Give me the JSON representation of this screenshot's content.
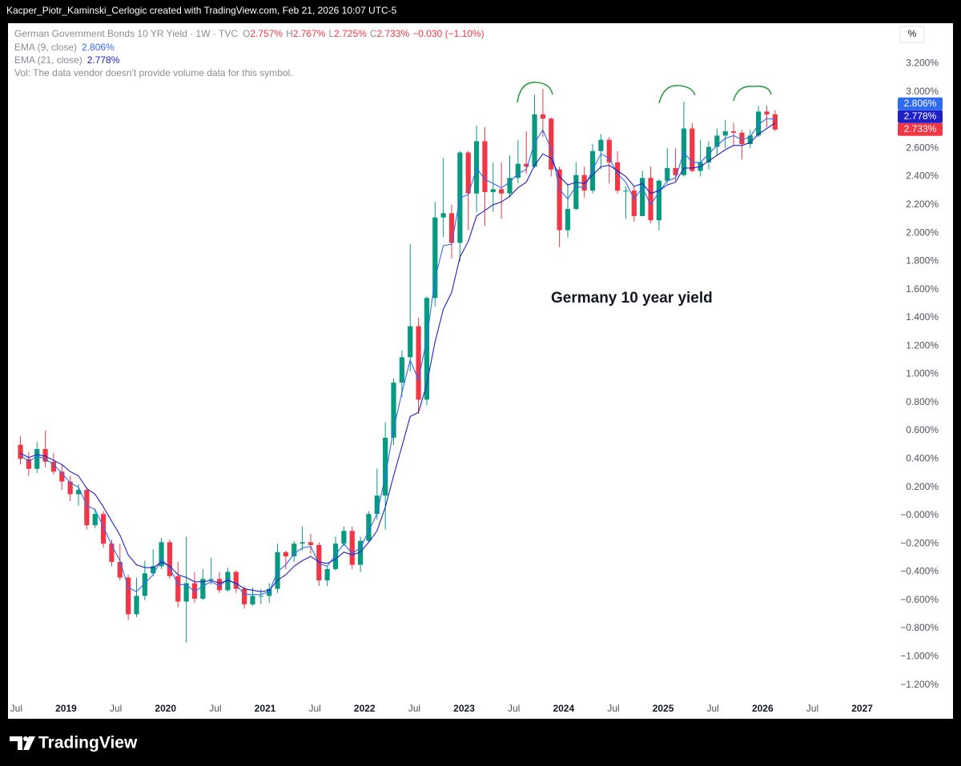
{
  "header": {
    "credit": "Kacper_Piotr_Kaminski_Cerlogic created with TradingView.com, Feb 21, 2026 10:07 UTC-5"
  },
  "footer": {
    "brand": "TradingView"
  },
  "chart_data": {
    "type": "candlestick",
    "title": "German Government Bonds 10 YR Yield · 1W · TVC",
    "legend": {
      "ohlc": [
        {
          "key": "O",
          "value": "2.757%"
        },
        {
          "key": "H",
          "value": "2.767%"
        },
        {
          "key": "L",
          "value": "2.725%"
        },
        {
          "key": "C",
          "value": "2.733%"
        }
      ],
      "change": "−0.030 (−1.10%)",
      "volume_note": "Vol: The data vendor doesn't provide volume data for this symbol."
    },
    "annotation": "Germany 10 year yield",
    "unit_label": "%",
    "up_color": "#089981",
    "down_color": "#f23645",
    "x": [
      "2018-07",
      "2018-08",
      "2018-09",
      "2018-10",
      "2018-11",
      "2018-12",
      "2019-01",
      "2019-02",
      "2019-03",
      "2019-04",
      "2019-05",
      "2019-06",
      "2019-07",
      "2019-08",
      "2019-09",
      "2019-10",
      "2019-11",
      "2019-12",
      "2020-01",
      "2020-02",
      "2020-03",
      "2020-04",
      "2020-05",
      "2020-06",
      "2020-07",
      "2020-08",
      "2020-09",
      "2020-10",
      "2020-11",
      "2020-12",
      "2021-01",
      "2021-02",
      "2021-03",
      "2021-04",
      "2021-05",
      "2021-06",
      "2021-07",
      "2021-08",
      "2021-09",
      "2021-10",
      "2021-11",
      "2021-12",
      "2022-01",
      "2022-02",
      "2022-03",
      "2022-04",
      "2022-05",
      "2022-06",
      "2022-07",
      "2022-08",
      "2022-09",
      "2022-10",
      "2022-11",
      "2022-12",
      "2023-01",
      "2023-02",
      "2023-03",
      "2023-04",
      "2023-05",
      "2023-06",
      "2023-07",
      "2023-08",
      "2023-09",
      "2023-10",
      "2023-11",
      "2023-12",
      "2024-01",
      "2024-02",
      "2024-03",
      "2024-04",
      "2024-05",
      "2024-06",
      "2024-07",
      "2024-08",
      "2024-09",
      "2024-10",
      "2024-11",
      "2024-12",
      "2025-01",
      "2025-02",
      "2025-03",
      "2025-04",
      "2025-05",
      "2025-06",
      "2025-07",
      "2025-08",
      "2025-09",
      "2025-10",
      "2025-11",
      "2025-12",
      "2026-01",
      "2026-02"
    ],
    "open": [
      0.5,
      0.4,
      0.33,
      0.47,
      0.38,
      0.31,
      0.24,
      0.15,
      0.18,
      -0.07,
      0.01,
      -0.2,
      -0.33,
      -0.44,
      -0.7,
      -0.57,
      -0.41,
      -0.36,
      -0.19,
      -0.43,
      -0.61,
      -0.48,
      -0.59,
      -0.45,
      -0.45,
      -0.53,
      -0.4,
      -0.52,
      -0.63,
      -0.57,
      -0.57,
      -0.52,
      -0.26,
      -0.29,
      -0.2,
      -0.19,
      -0.21,
      -0.46,
      -0.38,
      -0.2,
      -0.11,
      -0.35,
      -0.18,
      0.01,
      0.14,
      0.55,
      0.94,
      1.12,
      1.34,
      0.82,
      1.54,
      2.11,
      2.14,
      1.93,
      2.57,
      2.28,
      2.65,
      2.29,
      2.31,
      2.28,
      2.39,
      2.49,
      2.47,
      2.84,
      2.81,
      2.45,
      2.02,
      2.17,
      2.41,
      2.3,
      2.58,
      2.66,
      2.5,
      2.3,
      2.3,
      2.12,
      2.39,
      2.09,
      2.37,
      2.46,
      2.41,
      2.74,
      2.44,
      2.5,
      2.61,
      2.69,
      2.72,
      2.71,
      2.63,
      2.69,
      2.86,
      2.84
    ],
    "high": [
      0.56,
      0.45,
      0.52,
      0.6,
      0.44,
      0.36,
      0.28,
      0.22,
      0.2,
      0.05,
      0.03,
      -0.17,
      -0.2,
      -0.42,
      -0.44,
      -0.32,
      -0.24,
      -0.16,
      -0.17,
      -0.33,
      -0.15,
      -0.4,
      -0.38,
      -0.3,
      -0.4,
      -0.37,
      -0.39,
      -0.5,
      -0.51,
      -0.52,
      -0.48,
      -0.2,
      -0.25,
      -0.18,
      -0.08,
      -0.13,
      -0.19,
      -0.36,
      -0.15,
      -0.08,
      -0.08,
      -0.15,
      0.03,
      0.33,
      0.66,
      0.97,
      1.17,
      1.92,
      1.4,
      1.55,
      2.22,
      2.53,
      2.2,
      2.58,
      2.58,
      2.76,
      2.75,
      2.5,
      2.5,
      2.55,
      2.66,
      2.72,
      2.98,
      3.02,
      2.82,
      2.47,
      2.35,
      2.5,
      2.47,
      2.63,
      2.7,
      2.68,
      2.58,
      2.33,
      2.33,
      2.44,
      2.47,
      2.38,
      2.6,
      2.6,
      2.93,
      2.78,
      2.66,
      2.65,
      2.74,
      2.8,
      2.78,
      2.73,
      2.73,
      2.9,
      2.9,
      2.87
    ],
    "low": [
      0.36,
      0.28,
      0.3,
      0.34,
      0.29,
      0.18,
      0.1,
      0.07,
      -0.1,
      -0.09,
      -0.23,
      -0.36,
      -0.46,
      -0.74,
      -0.72,
      -0.6,
      -0.43,
      -0.38,
      -0.45,
      -0.65,
      -0.9,
      -0.62,
      -0.6,
      -0.49,
      -0.55,
      -0.54,
      -0.55,
      -0.66,
      -0.64,
      -0.63,
      -0.62,
      -0.55,
      -0.38,
      -0.33,
      -0.25,
      -0.27,
      -0.5,
      -0.5,
      -0.39,
      -0.22,
      -0.38,
      -0.4,
      -0.19,
      -0.03,
      -0.1,
      0.5,
      0.84,
      1.02,
      0.72,
      0.78,
      1.48,
      1.97,
      1.82,
      1.8,
      2.02,
      2.15,
      2.05,
      2.15,
      2.1,
      2.25,
      2.35,
      2.42,
      2.46,
      2.68,
      2.4,
      1.9,
      1.97,
      2.16,
      2.25,
      2.28,
      2.45,
      2.35,
      2.28,
      2.1,
      2.08,
      2.12,
      2.07,
      2.02,
      2.35,
      2.37,
      2.4,
      2.43,
      2.4,
      2.45,
      2.55,
      2.6,
      2.62,
      2.52,
      2.6,
      2.68,
      2.75,
      2.72
    ],
    "close": [
      0.4,
      0.33,
      0.47,
      0.38,
      0.31,
      0.24,
      0.15,
      0.18,
      -0.07,
      0.01,
      -0.2,
      -0.33,
      -0.44,
      -0.7,
      -0.57,
      -0.41,
      -0.36,
      -0.19,
      -0.43,
      -0.61,
      -0.48,
      -0.59,
      -0.45,
      -0.45,
      -0.53,
      -0.4,
      -0.52,
      -0.63,
      -0.57,
      -0.57,
      -0.52,
      -0.26,
      -0.29,
      -0.2,
      -0.19,
      -0.21,
      -0.46,
      -0.38,
      -0.2,
      -0.11,
      -0.35,
      -0.18,
      0.01,
      0.14,
      0.55,
      0.94,
      1.12,
      1.34,
      0.82,
      1.54,
      2.11,
      2.14,
      1.93,
      2.57,
      2.28,
      2.65,
      2.29,
      2.31,
      2.28,
      2.39,
      2.49,
      2.47,
      2.84,
      2.81,
      2.45,
      2.02,
      2.17,
      2.41,
      2.3,
      2.58,
      2.66,
      2.5,
      2.3,
      2.3,
      2.12,
      2.39,
      2.09,
      2.37,
      2.46,
      2.41,
      2.74,
      2.44,
      2.5,
      2.61,
      2.69,
      2.72,
      2.71,
      2.63,
      2.69,
      2.86,
      2.84,
      2.733
    ],
    "series": [
      {
        "name": "EMA (9, close)",
        "color": "#2f6bf2",
        "last_label": "2.806%",
        "values": [
          0.43,
          0.38,
          0.42,
          0.4,
          0.36,
          0.3,
          0.23,
          0.2,
          0.07,
          0.04,
          -0.08,
          -0.21,
          -0.32,
          -0.51,
          -0.54,
          -0.48,
          -0.42,
          -0.31,
          -0.37,
          -0.49,
          -0.49,
          -0.54,
          -0.5,
          -0.47,
          -0.5,
          -0.45,
          -0.49,
          -0.56,
          -0.56,
          -0.56,
          -0.54,
          -0.4,
          -0.35,
          -0.27,
          -0.23,
          -0.22,
          -0.34,
          -0.36,
          -0.28,
          -0.2,
          -0.27,
          -0.23,
          -0.11,
          0.01,
          0.28,
          0.61,
          0.87,
          1.1,
          0.96,
          1.25,
          1.68,
          1.91,
          1.92,
          2.25,
          2.27,
          2.46,
          2.38,
          2.35,
          2.32,
          2.36,
          2.42,
          2.45,
          2.64,
          2.73,
          2.59,
          2.31,
          2.24,
          2.33,
          2.32,
          2.45,
          2.56,
          2.53,
          2.42,
          2.36,
          2.24,
          2.32,
          2.2,
          2.29,
          2.37,
          2.39,
          2.57,
          2.5,
          2.5,
          2.56,
          2.62,
          2.67,
          2.69,
          2.66,
          2.68,
          2.77,
          2.81,
          2.806
        ]
      },
      {
        "name": "EMA (21, close)",
        "color": "#2020c8",
        "last_label": "2.778%",
        "values": [
          0.44,
          0.41,
          0.43,
          0.42,
          0.39,
          0.36,
          0.31,
          0.28,
          0.19,
          0.15,
          0.06,
          -0.04,
          -0.14,
          -0.28,
          -0.35,
          -0.37,
          -0.37,
          -0.33,
          -0.36,
          -0.42,
          -0.44,
          -0.47,
          -0.47,
          -0.46,
          -0.48,
          -0.46,
          -0.48,
          -0.52,
          -0.53,
          -0.54,
          -0.53,
          -0.46,
          -0.42,
          -0.36,
          -0.32,
          -0.29,
          -0.33,
          -0.34,
          -0.31,
          -0.26,
          -0.28,
          -0.26,
          -0.19,
          -0.11,
          0.06,
          0.28,
          0.49,
          0.7,
          0.73,
          0.93,
          1.23,
          1.46,
          1.58,
          1.83,
          1.94,
          2.12,
          2.16,
          2.2,
          2.22,
          2.26,
          2.32,
          2.36,
          2.48,
          2.56,
          2.53,
          2.4,
          2.34,
          2.36,
          2.35,
          2.41,
          2.47,
          2.48,
          2.44,
          2.4,
          2.33,
          2.35,
          2.28,
          2.3,
          2.34,
          2.36,
          2.46,
          2.46,
          2.47,
          2.51,
          2.55,
          2.59,
          2.62,
          2.62,
          2.64,
          2.7,
          2.74,
          2.778
        ]
      }
    ],
    "xlim": [
      "2018-06",
      "2027-05"
    ],
    "xticks": [
      {
        "value": "2018-07",
        "label": "Jul"
      },
      {
        "value": "2019-01",
        "label": "2019"
      },
      {
        "value": "2019-07",
        "label": "Jul"
      },
      {
        "value": "2020-01",
        "label": "2020"
      },
      {
        "value": "2020-07",
        "label": "Jul"
      },
      {
        "value": "2021-01",
        "label": "2021"
      },
      {
        "value": "2021-07",
        "label": "Jul"
      },
      {
        "value": "2022-01",
        "label": "2022"
      },
      {
        "value": "2022-07",
        "label": "Jul"
      },
      {
        "value": "2023-01",
        "label": "2023"
      },
      {
        "value": "2023-07",
        "label": "Jul"
      },
      {
        "value": "2024-01",
        "label": "2024"
      },
      {
        "value": "2024-07",
        "label": "Jul"
      },
      {
        "value": "2025-01",
        "label": "2025"
      },
      {
        "value": "2025-07",
        "label": "Jul"
      },
      {
        "value": "2026-01",
        "label": "2026"
      },
      {
        "value": "2026-07",
        "label": "Jul"
      },
      {
        "value": "2027-01",
        "label": "2027"
      }
    ],
    "ylim": [
      -1.31,
      3.48
    ],
    "yticks": [
      {
        "value": -1.2,
        "label": "−1.200%"
      },
      {
        "value": -1.0,
        "label": "−1.000%"
      },
      {
        "value": -0.8,
        "label": "−0.800%"
      },
      {
        "value": -0.6,
        "label": "−0.600%"
      },
      {
        "value": -0.4,
        "label": "−0.400%"
      },
      {
        "value": -0.2,
        "label": "−0.200%"
      },
      {
        "value": 0,
        "label": "−0.000%"
      },
      {
        "value": 0.2,
        "label": "0.200%"
      },
      {
        "value": 0.4,
        "label": "0.400%"
      },
      {
        "value": 0.6,
        "label": "0.600%"
      },
      {
        "value": 0.8,
        "label": "0.800%"
      },
      {
        "value": 1.0,
        "label": "1.000%"
      },
      {
        "value": 1.2,
        "label": "1.200%"
      },
      {
        "value": 1.4,
        "label": "1.400%"
      },
      {
        "value": 1.6,
        "label": "1.600%"
      },
      {
        "value": 1.8,
        "label": "1.800%"
      },
      {
        "value": 2.0,
        "label": "2.000%"
      },
      {
        "value": 2.2,
        "label": "2.200%"
      },
      {
        "value": 2.4,
        "label": "2.400%"
      },
      {
        "value": 2.6,
        "label": "2.600%"
      },
      {
        "value": 2.8,
        "label": "2.800%"
      },
      {
        "value": 3.0,
        "label": "3.000%"
      },
      {
        "value": 3.2,
        "label": "3.200%"
      }
    ],
    "grid": false
  }
}
